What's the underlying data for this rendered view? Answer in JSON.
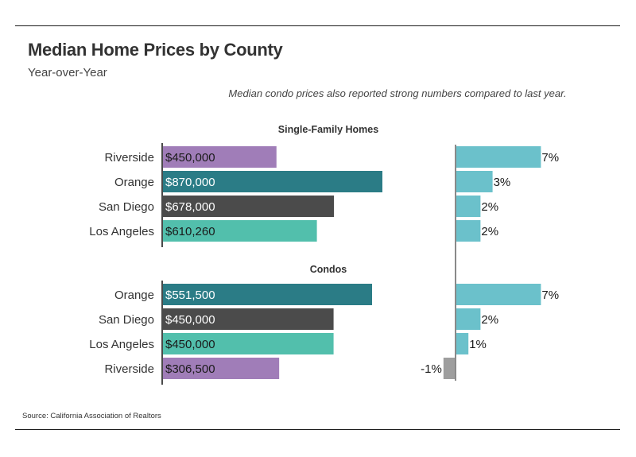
{
  "header": {
    "title": "Median Home Prices by County",
    "subtitle": "Year-over-Year",
    "note": "Median condo prices also reported strong numbers compared to last year."
  },
  "footer": {
    "source": "Source:  California Association of Realtors"
  },
  "colors": {
    "Riverside": "#a07db8",
    "Orange": "#2b7c86",
    "San Diego": "#4b4b4b",
    "Los Angeles": "#52bfac",
    "change_positive": "#6bc1cb",
    "change_negative": "#9e9e9e",
    "axis": "#4a4a4a",
    "change_axis": "#8a8a8a"
  },
  "chart_data": {
    "type": "bar",
    "title": "Median Home Prices by County",
    "subtitle": "Year-over-Year",
    "annotation": "Median condo prices also reported strong numbers compared to last year.",
    "source": "California Association of Realtors",
    "panels": [
      {
        "name": "Single-Family Homes",
        "price_max": 870000,
        "rows": [
          {
            "county": "Riverside",
            "price": 450000,
            "price_label": "$450,000",
            "change": 7,
            "change_label": "7%"
          },
          {
            "county": "Orange",
            "price": 870000,
            "price_label": "$870,000",
            "change": 3,
            "change_label": "3%"
          },
          {
            "county": "San Diego",
            "price": 678000,
            "price_label": "$678,000",
            "change": 2,
            "change_label": "2%"
          },
          {
            "county": "Los Angeles",
            "price": 610260,
            "price_label": "$610,260",
            "change": 2,
            "change_label": "2%"
          }
        ]
      },
      {
        "name": "Condos",
        "price_max": 551500,
        "rows": [
          {
            "county": "Orange",
            "price": 551500,
            "price_label": "$551,500",
            "change": 7,
            "change_label": "7%"
          },
          {
            "county": "San Diego",
            "price": 450000,
            "price_label": "$450,000",
            "change": 2,
            "change_label": "2%"
          },
          {
            "county": "Los Angeles",
            "price": 450000,
            "price_label": "$450,000",
            "change": 1,
            "change_label": "1%"
          },
          {
            "county": "Riverside",
            "price": 306500,
            "price_label": "$306,500",
            "change": -1,
            "change_label": "-1%"
          }
        ]
      }
    ],
    "xlabel": "",
    "ylabel": "",
    "grid": false,
    "legend": "none"
  }
}
